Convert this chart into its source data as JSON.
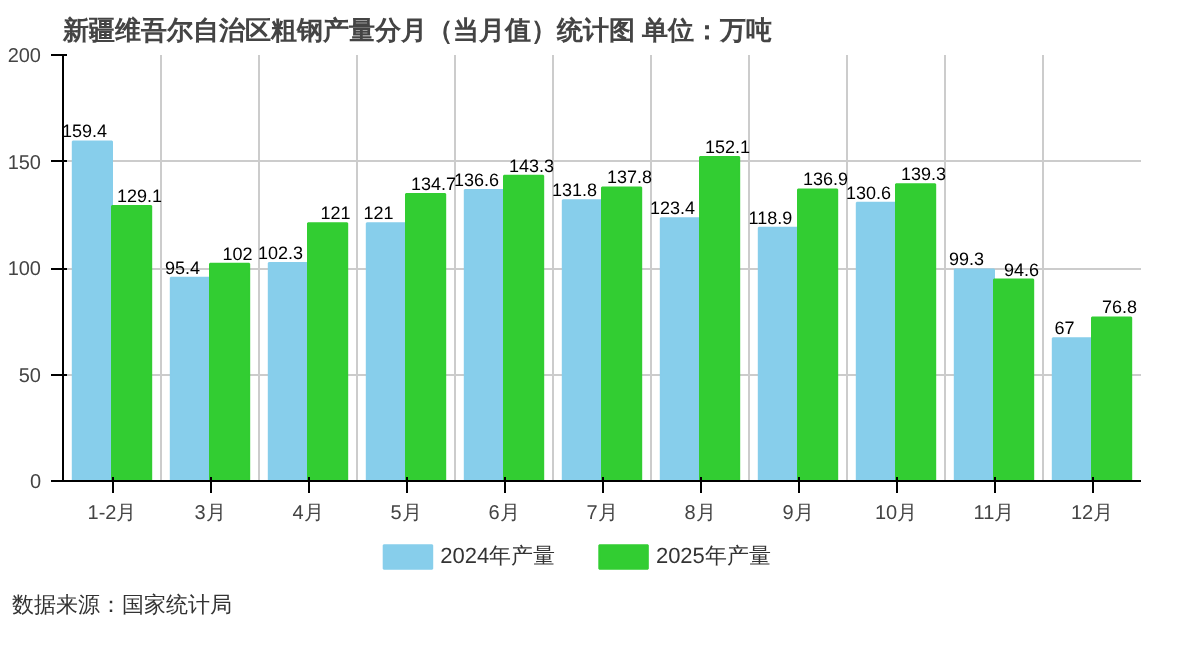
{
  "chart_data": {
    "type": "bar",
    "title": "新疆维吾尔自治区粗钢产量分月（当月值）统计图 单位：万吨",
    "categories": [
      "1-2月",
      "3月",
      "4月",
      "5月",
      "6月",
      "7月",
      "8月",
      "9月",
      "10月",
      "11月",
      "12月"
    ],
    "series": [
      {
        "name": "2024年产量",
        "color": "#87ceeb",
        "values": [
          159.4,
          95.4,
          102.3,
          121,
          136.6,
          131.8,
          123.4,
          118.9,
          130.6,
          99.3,
          67
        ]
      },
      {
        "name": "2025年产量",
        "color": "#32cd32",
        "values": [
          129.1,
          102,
          121,
          134.7,
          143.3,
          137.8,
          152.1,
          136.9,
          139.3,
          94.6,
          76.8
        ]
      }
    ],
    "ylim": [
      0,
      200
    ],
    "yticks": [
      0,
      50,
      100,
      150,
      200
    ],
    "grid": true,
    "legend": "bottom",
    "data_labels": true,
    "annotations": [
      "数据来源：国家统计局"
    ]
  }
}
